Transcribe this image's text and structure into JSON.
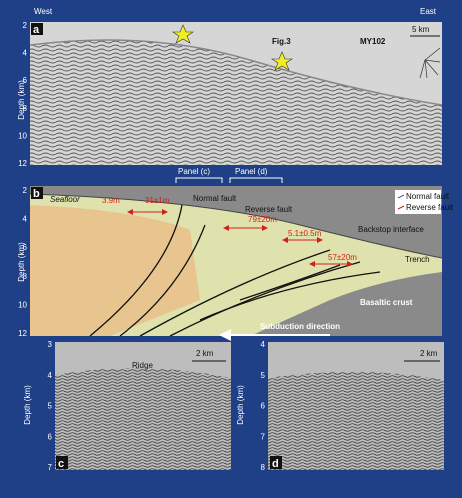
{
  "panel_a": {
    "label": "a",
    "west": "West",
    "east": "East",
    "fig_ref": "Fig.3",
    "profile": "MY102",
    "scale": "5 km",
    "y_label": "Depth (km)",
    "y_ticks": [
      2,
      4,
      6,
      8,
      10,
      12
    ]
  },
  "panel_b": {
    "label": "b",
    "panel_c_ref": "Panel (c)",
    "panel_d_ref": "Panel (d)",
    "seafloor": "Seafloor",
    "annotations": [
      "3.9m",
      "31±1m",
      "Normal fault",
      "Reverse fault",
      "79±20m",
      "5.1±0.5m",
      "57±20m",
      "Backstop interface",
      "Trench",
      "Basaltic crust",
      "Subduction direction"
    ],
    "legend": [
      "Normal fault",
      "Reverse fault"
    ],
    "y_label": "Depth (km)",
    "y_ticks": [
      2,
      4,
      6,
      8,
      10,
      12
    ]
  },
  "panel_c": {
    "label": "c",
    "ridge": "Ridge",
    "scale": "2 km",
    "y_label": "Depth (km)",
    "y_ticks": [
      3,
      4,
      5,
      6,
      7
    ]
  },
  "panel_d": {
    "label": "d",
    "scale": "2 km",
    "y_label": "Depth (km)",
    "y_ticks": [
      4,
      5,
      6,
      7,
      8
    ]
  }
}
